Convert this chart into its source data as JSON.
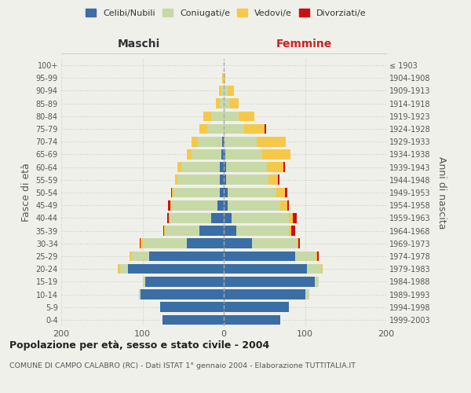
{
  "age_groups": [
    "0-4",
    "5-9",
    "10-14",
    "15-19",
    "20-24",
    "25-29",
    "30-34",
    "35-39",
    "40-44",
    "45-49",
    "50-54",
    "55-59",
    "60-64",
    "65-69",
    "70-74",
    "75-79",
    "80-84",
    "85-89",
    "90-94",
    "95-99",
    "100+"
  ],
  "birth_years": [
    "1999-2003",
    "1994-1998",
    "1989-1993",
    "1984-1988",
    "1979-1983",
    "1974-1978",
    "1969-1973",
    "1964-1968",
    "1959-1963",
    "1954-1958",
    "1949-1953",
    "1944-1948",
    "1939-1943",
    "1934-1938",
    "1929-1933",
    "1924-1928",
    "1919-1923",
    "1914-1918",
    "1909-1913",
    "1904-1908",
    "≤ 1903"
  ],
  "male": {
    "celibi": [
      75,
      78,
      102,
      97,
      118,
      92,
      45,
      30,
      15,
      8,
      5,
      5,
      5,
      3,
      2,
      0,
      0,
      0,
      0,
      0,
      0
    ],
    "coniugati": [
      0,
      0,
      2,
      3,
      10,
      22,
      55,
      42,
      52,
      57,
      57,
      52,
      47,
      37,
      30,
      20,
      15,
      5,
      3,
      1,
      0
    ],
    "vedovi": [
      0,
      0,
      0,
      0,
      2,
      2,
      2,
      1,
      1,
      1,
      2,
      3,
      5,
      5,
      8,
      10,
      10,
      5,
      3,
      1,
      0
    ],
    "divorziati": [
      0,
      0,
      0,
      0,
      0,
      0,
      1,
      1,
      2,
      3,
      1,
      0,
      0,
      0,
      0,
      0,
      0,
      0,
      0,
      0,
      0
    ]
  },
  "female": {
    "nubili": [
      70,
      80,
      100,
      112,
      102,
      88,
      35,
      15,
      10,
      5,
      5,
      3,
      3,
      2,
      1,
      0,
      0,
      0,
      0,
      0,
      0
    ],
    "coniugate": [
      0,
      0,
      5,
      5,
      18,
      25,
      55,
      65,
      70,
      65,
      60,
      52,
      50,
      45,
      40,
      25,
      18,
      8,
      5,
      1,
      0
    ],
    "vedove": [
      0,
      0,
      0,
      0,
      2,
      2,
      2,
      3,
      5,
      8,
      10,
      12,
      20,
      35,
      35,
      25,
      20,
      10,
      8,
      1,
      0
    ],
    "divorziate": [
      0,
      0,
      0,
      0,
      0,
      2,
      2,
      5,
      5,
      2,
      3,
      2,
      2,
      0,
      0,
      2,
      0,
      0,
      0,
      0,
      0
    ]
  },
  "colors": {
    "celibi": "#3A6EA5",
    "coniugati": "#C8D9A8",
    "vedovi": "#F5C84A",
    "divorziati": "#CC1111"
  },
  "xlim": 200,
  "title": "Popolazione per età, sesso e stato civile - 2004",
  "subtitle": "COMUNE DI CAMPO CALABRO (RC) - Dati ISTAT 1° gennaio 2004 - Elaborazione TUTTITALIA.IT",
  "ylabel_left": "Fasce di età",
  "ylabel_right": "Anni di nascita",
  "xlabel_left": "Maschi",
  "xlabel_right": "Femmine",
  "bg_color": "#f0f0eb",
  "legend_labels": [
    "Celibi/Nubili",
    "Coniugati/e",
    "Vedovi/e",
    "Divorziati/e"
  ]
}
